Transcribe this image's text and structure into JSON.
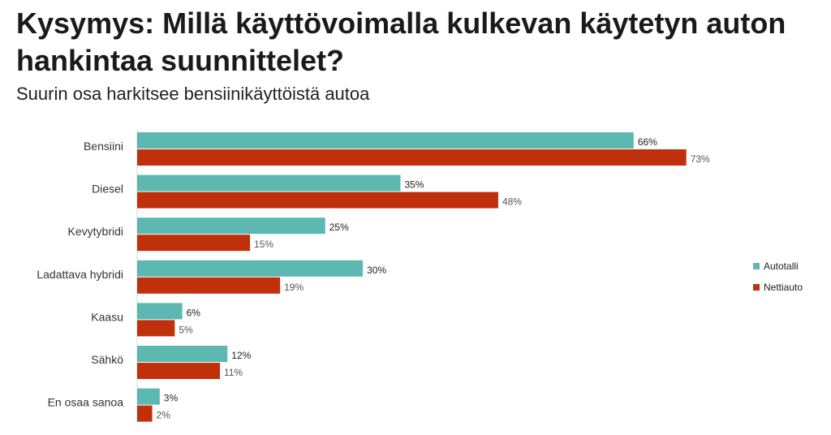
{
  "title": "Kysymys: Millä käyttövoimalla kulkevan käytetyn auton hankintaa suunnittelet?",
  "subtitle": "Suurin osa harkitsee bensiinikäyttöistä autoa",
  "chart_data": {
    "type": "bar",
    "orientation": "horizontal",
    "categories": [
      "Bensiini",
      "Diesel",
      "Kevytybridi",
      "Ladattava hybridi",
      "Kaasu",
      "Sähkö",
      "En osaa sanoa"
    ],
    "series": [
      {
        "name": "Autotalli",
        "color": "#5db8b1",
        "values": [
          66,
          35,
          25,
          30,
          6,
          12,
          3
        ]
      },
      {
        "name": "Nettiauto",
        "color": "#c0300a",
        "values": [
          73,
          48,
          15,
          19,
          5,
          11,
          2
        ]
      }
    ],
    "value_suffix": "%",
    "xlim": [
      0,
      100
    ],
    "grid": false,
    "legend_position": "right"
  }
}
